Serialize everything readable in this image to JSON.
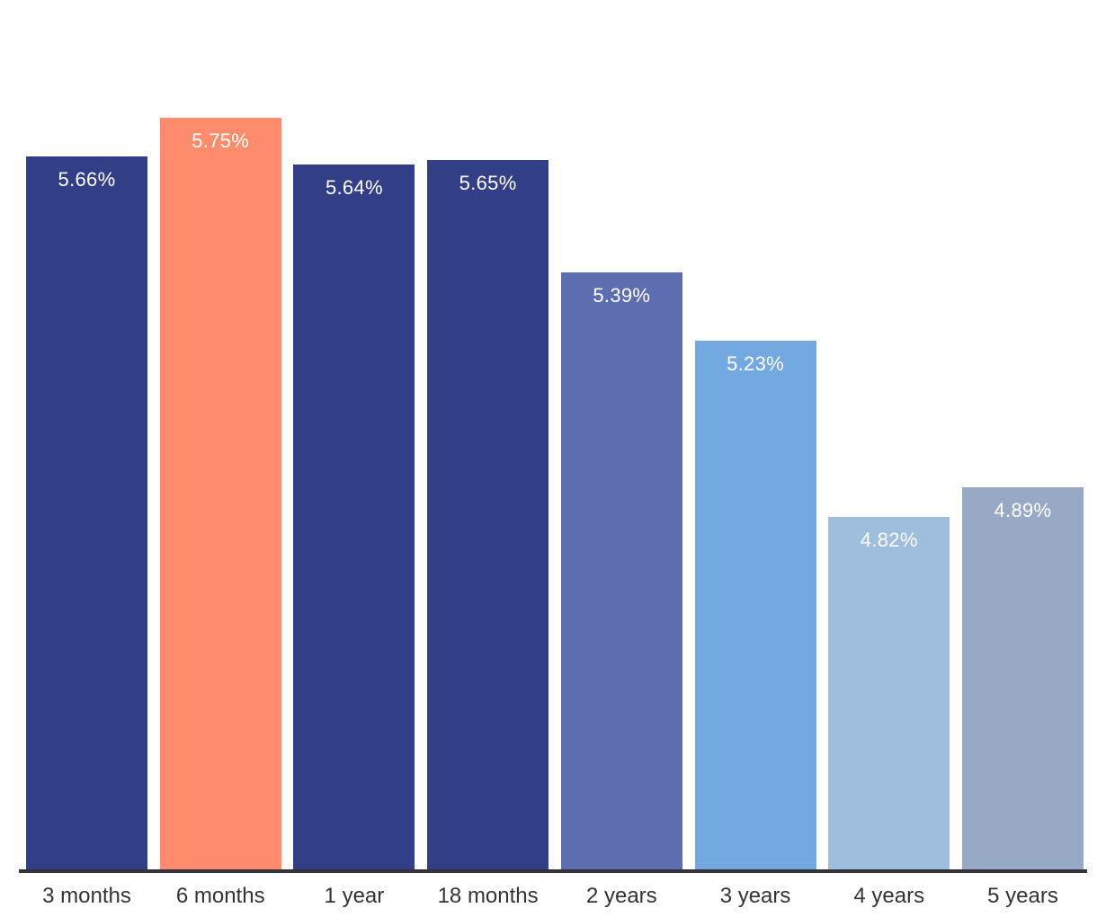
{
  "chart_data": {
    "type": "bar",
    "title": "",
    "xlabel": "",
    "ylabel": "",
    "categories": [
      "3 months",
      "6 months",
      "1 year",
      "18 months",
      "2 years",
      "3 years",
      "4 years",
      "5 years"
    ],
    "values": [
      5.66,
      5.75,
      5.64,
      5.65,
      5.39,
      5.23,
      4.82,
      4.89
    ],
    "value_labels": [
      "5.66%",
      "5.75%",
      "5.64%",
      "5.65%",
      "5.39%",
      "5.23%",
      "4.82%",
      "4.89%"
    ],
    "bar_colors": [
      "#323E86",
      "#FE8C6D",
      "#323E86",
      "#323E86",
      "#5C6EB0",
      "#74A8E0",
      "#9FBEDE",
      "#98A9C6"
    ],
    "highlight_index": 1,
    "highlight_color": "#FE8C6D",
    "ylim": [
      4.0,
      6.1
    ],
    "baseline_value": 4.0,
    "grid": false,
    "legend": false,
    "y_axis_visible": false,
    "colors": {
      "background": "#FFFFFF",
      "axis_line": "#34353A",
      "category_label": "#333333",
      "value_label": "#FFFFFF"
    }
  }
}
